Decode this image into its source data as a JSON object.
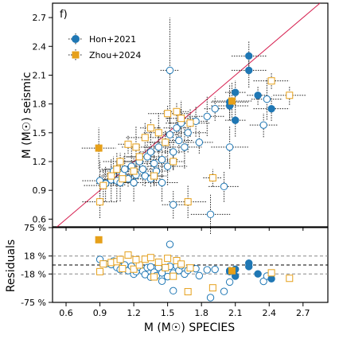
{
  "chart_data": {
    "type": "scatter",
    "panel_label": "f)",
    "xlabel": "M (M☉) SPECIES",
    "ylabel_top": "M (M☉) seismic",
    "ylabel_bottom": "Residuals",
    "xlim": [
      0.48,
      2.92
    ],
    "ylim_top": [
      0.52,
      2.85
    ],
    "ylim_bottom": [
      -0.75,
      0.75
    ],
    "x_ticks": [
      "0.6",
      "0.9",
      "1.2",
      "1.5",
      "1.8",
      "2.1",
      "2.4",
      "2.7"
    ],
    "y_ticks_top": [
      "0.6",
      "0.9",
      "1.2",
      "1.5",
      "1.8",
      "2.1",
      "2.4",
      "2.7"
    ],
    "y_ticks_bottom": [
      "75 %",
      "18 %",
      "-18 %",
      "-75 %"
    ],
    "y_tick_values_bottom": [
      0.75,
      0.18,
      -0.18,
      -0.75
    ],
    "reference_lines": {
      "one_to_one": true,
      "residual_zero": 0.0,
      "residual_band": [
        0.18,
        -0.18
      ]
    },
    "colors": {
      "hon": "#1f77b4",
      "zhou": "#e6a01a",
      "one_to_one": "#d62050"
    },
    "series": [
      {
        "name": "Hon+2021",
        "marker": "circle",
        "points": [
          {
            "x": 0.9,
            "y": 1.0,
            "filled": false
          },
          {
            "x": 0.95,
            "y": 0.97,
            "filled": false
          },
          {
            "x": 1.0,
            "y": 1.01,
            "filled": false
          },
          {
            "x": 1.02,
            "y": 1.1,
            "filled": false
          },
          {
            "x": 1.05,
            "y": 1.0,
            "filled": false
          },
          {
            "x": 1.08,
            "y": 0.98,
            "filled": false
          },
          {
            "x": 1.1,
            "y": 1.07,
            "filled": false
          },
          {
            "x": 1.12,
            "y": 1.12,
            "filled": false
          },
          {
            "x": 1.15,
            "y": 1.02,
            "filled": false
          },
          {
            "x": 1.18,
            "y": 1.15,
            "filled": false
          },
          {
            "x": 1.2,
            "y": 0.98,
            "filled": false
          },
          {
            "x": 1.22,
            "y": 1.06,
            "filled": false
          },
          {
            "x": 1.25,
            "y": 1.2,
            "filled": false
          },
          {
            "x": 1.28,
            "y": 1.12,
            "filled": false
          },
          {
            "x": 1.3,
            "y": 1.05,
            "filled": false
          },
          {
            "x": 1.32,
            "y": 1.25,
            "filled": false
          },
          {
            "x": 1.35,
            "y": 1.3,
            "filled": false
          },
          {
            "x": 1.38,
            "y": 1.18,
            "filled": false
          },
          {
            "x": 1.4,
            "y": 1.1,
            "filled": false
          },
          {
            "x": 1.42,
            "y": 1.35,
            "filled": false
          },
          {
            "x": 1.45,
            "y": 1.22,
            "filled": false
          },
          {
            "x": 1.48,
            "y": 1.4,
            "filled": false
          },
          {
            "x": 1.5,
            "y": 1.15,
            "filled": false
          },
          {
            "x": 1.52,
            "y": 1.48,
            "filled": false
          },
          {
            "x": 1.55,
            "y": 1.3,
            "filled": false
          },
          {
            "x": 1.58,
            "y": 1.55,
            "filled": false
          },
          {
            "x": 1.6,
            "y": 1.42,
            "filled": false
          },
          {
            "x": 1.62,
            "y": 1.6,
            "filled": false
          },
          {
            "x": 1.65,
            "y": 1.35,
            "filled": false
          },
          {
            "x": 1.68,
            "y": 1.5,
            "filled": false
          },
          {
            "x": 1.52,
            "y": 2.15,
            "filled": false
          },
          {
            "x": 1.55,
            "y": 0.75,
            "filled": false
          },
          {
            "x": 1.88,
            "y": 0.65,
            "filled": false
          },
          {
            "x": 2.0,
            "y": 0.94,
            "filled": false
          },
          {
            "x": 2.05,
            "y": 1.35,
            "filled": false
          },
          {
            "x": 1.85,
            "y": 1.67,
            "filled": false
          },
          {
            "x": 1.92,
            "y": 1.75,
            "filled": false
          },
          {
            "x": 2.35,
            "y": 1.58,
            "filled": false
          },
          {
            "x": 2.38,
            "y": 1.85,
            "filled": false
          },
          {
            "x": 1.75,
            "y": 1.62,
            "filled": false
          },
          {
            "x": 1.78,
            "y": 1.4,
            "filled": false
          },
          {
            "x": 1.35,
            "y": 1.02,
            "filled": false
          },
          {
            "x": 1.45,
            "y": 0.98,
            "filled": false
          },
          {
            "x": 2.05,
            "y": 1.78,
            "filled": true
          },
          {
            "x": 2.1,
            "y": 1.92,
            "filled": true
          },
          {
            "x": 2.1,
            "y": 1.63,
            "filled": true
          },
          {
            "x": 2.22,
            "y": 2.3,
            "filled": true
          },
          {
            "x": 2.22,
            "y": 2.15,
            "filled": true
          },
          {
            "x": 2.3,
            "y": 1.89,
            "filled": true
          },
          {
            "x": 2.05,
            "y": 1.82,
            "filled": true
          },
          {
            "x": 2.42,
            "y": 1.75,
            "filled": true
          }
        ]
      },
      {
        "name": "Zhou+2024",
        "marker": "square",
        "points": [
          {
            "x": 0.9,
            "y": 0.78,
            "filled": false
          },
          {
            "x": 0.93,
            "y": 0.95,
            "filled": false
          },
          {
            "x": 1.0,
            "y": 1.05,
            "filled": false
          },
          {
            "x": 1.05,
            "y": 1.12,
            "filled": false
          },
          {
            "x": 1.08,
            "y": 1.2,
            "filled": false
          },
          {
            "x": 1.1,
            "y": 1.02,
            "filled": false
          },
          {
            "x": 1.15,
            "y": 1.38,
            "filled": false
          },
          {
            "x": 1.2,
            "y": 1.1,
            "filled": false
          },
          {
            "x": 1.25,
            "y": 1.25,
            "filled": false
          },
          {
            "x": 1.3,
            "y": 1.45,
            "filled": false
          },
          {
            "x": 1.35,
            "y": 1.55,
            "filled": false
          },
          {
            "x": 1.38,
            "y": 1.05,
            "filled": false
          },
          {
            "x": 1.42,
            "y": 1.5,
            "filled": false
          },
          {
            "x": 1.5,
            "y": 1.7,
            "filled": false
          },
          {
            "x": 1.55,
            "y": 1.2,
            "filled": false
          },
          {
            "x": 1.58,
            "y": 1.72,
            "filled": false
          },
          {
            "x": 1.62,
            "y": 1.65,
            "filled": false
          },
          {
            "x": 1.68,
            "y": 0.78,
            "filled": false
          },
          {
            "x": 1.7,
            "y": 1.6,
            "filled": false
          },
          {
            "x": 1.9,
            "y": 1.03,
            "filled": false
          },
          {
            "x": 2.42,
            "y": 2.04,
            "filled": false
          },
          {
            "x": 2.58,
            "y": 1.89,
            "filled": false
          },
          {
            "x": 1.22,
            "y": 1.35,
            "filled": false
          },
          {
            "x": 1.48,
            "y": 1.4,
            "filled": false
          },
          {
            "x": 0.89,
            "y": 1.34,
            "filled": true
          },
          {
            "x": 2.07,
            "y": 1.83,
            "filled": true
          }
        ]
      }
    ]
  }
}
